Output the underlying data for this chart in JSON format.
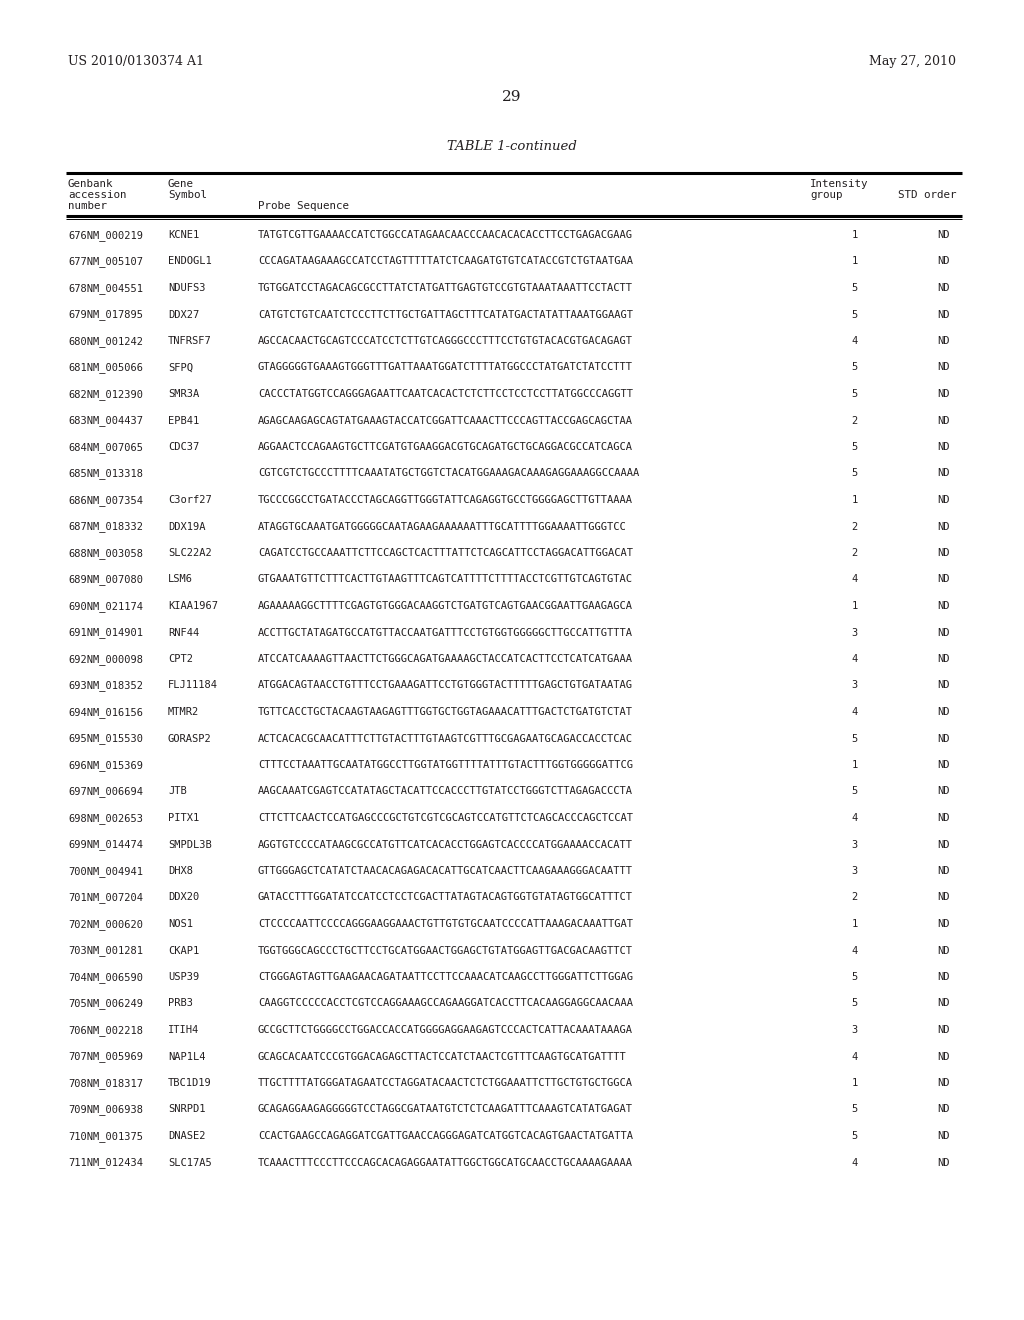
{
  "header_left": "US 2010/0130374 A1",
  "header_right": "May 27, 2010",
  "page_number": "29",
  "table_title": "TABLE 1-continued",
  "rows": [
    [
      "676NM_000219",
      "KCNE1",
      "TATGTCGTTGAAAACCATCTGGCCATAGAACAACCCAACACACACCTTCCTGAGACGAAG",
      "1",
      "ND"
    ],
    [
      "677NM_005107",
      "ENDOGL1",
      "CCCAGATAAGAAAGCCATCCTAGTTTTTATCTCAAGATGTGTCATACCGTCTGTAATGAA",
      "1",
      "ND"
    ],
    [
      "678NM_004551",
      "NDUFS3",
      "TGTGGATCCTAGACAGCGCCTTATCTATGATTGAGTGTCCGTGTAAATAAATTCCTACTT",
      "5",
      "ND"
    ],
    [
      "679NM_017895",
      "DDX27",
      "CATGTCTGTCAATCTCCCTTCTTGCTGATTAGCTTTCATATGACTATATTAAATGGAAGT",
      "5",
      "ND"
    ],
    [
      "680NM_001242",
      "TNFRSF7",
      "AGCCACAACTGCAGTCCCATCCTCTTGTCAGGGCCCTTTCCTGTGTACACGTGACAGAGT",
      "4",
      "ND"
    ],
    [
      "681NM_005066",
      "SFPQ",
      "GTAGGGGGTGAAAGTGGGTTTGATTAAATGGATCTTTTATGGCCCTATGATCTATCCTTT",
      "5",
      "ND"
    ],
    [
      "682NM_012390",
      "SMR3A",
      "CACCCTATGGTCCAGGGAGAATTCAATCACACTCTCTTCCTCCTCCTTATGGCCCAGGTT",
      "5",
      "ND"
    ],
    [
      "683NM_004437",
      "EPB41",
      "AGAGCAAGAGCAGTATGAAAGTACCATCGGATTCAAACTTCCCAGTTACCGAGCAGCTAA",
      "2",
      "ND"
    ],
    [
      "684NM_007065",
      "CDC37",
      "AGGAACTCCAGAAGTGCTTCGATGTGAAGGACGTGCAGATGCTGCAGGACGCCATCAGCA",
      "5",
      "ND"
    ],
    [
      "685NM_013318",
      "",
      "CGTCGTCTGCCCTTTTCAAATATGCTGGTCTACATGGAAAGACAAAGAGGAAAGGCCAAAA",
      "5",
      "ND"
    ],
    [
      "686NM_007354",
      "C3orf27",
      "TGCCCGGCCTGATACCCTAGCAGGTTGGGTATTCAGAGGTGCCTGGGGAGCTTGTTAAAA",
      "1",
      "ND"
    ],
    [
      "687NM_018332",
      "DDX19A",
      "ATAGGTGCAAATGATGGGGGCAATAGAAGAAAAAATTTGCATTTTGGAAAATTGGGTCC",
      "2",
      "ND"
    ],
    [
      "688NM_003058",
      "SLC22A2",
      "CAGATCCTGCCAAATTCTTCCAGCTCACTTTATTCTCAGCATTCCTAGGACATTGGACAT",
      "2",
      "ND"
    ],
    [
      "689NM_007080",
      "LSM6",
      "GTGAAATGTTCTTTCACTTGTAAGTTTCAGTCATTTTCTTTTACCTCGTTGTCAGTGTAC",
      "4",
      "ND"
    ],
    [
      "690NM_021174",
      "KIAA1967",
      "AGAAAAAGGCTTTTCGAGTGTGGGACAAGGTCTGATGTCAGTGAACGGAATTGAAGAGCA",
      "1",
      "ND"
    ],
    [
      "691NM_014901",
      "RNF44",
      "ACCTTGCTATAGATGCCATGTTACCAATGATTTCCTGTGGTGGGGGCTTGCCATTGTTTA",
      "3",
      "ND"
    ],
    [
      "692NM_000098",
      "CPT2",
      "ATCCATCAAAAGTTAACTTCTGGGCAGATGAAAAGCTACCATCACTTCCTCATCATGAAA",
      "4",
      "ND"
    ],
    [
      "693NM_018352",
      "FLJ11184",
      "ATGGACAGTAACCTGTTTCCTGAAAGATTCCTGTGGGTACTTTTTGAGCTGTGATAATAG",
      "3",
      "ND"
    ],
    [
      "694NM_016156",
      "MTMR2",
      "TGTTCACCTGCTACAAGTAAGAGTTTGGTGCTGGTAGAAACATTTGACTCTGATGTCTAT",
      "4",
      "ND"
    ],
    [
      "695NM_015530",
      "GORASP2",
      "ACTCACACGCAACATTTCTTGTACTTTGTAAGTCGTTTGCGAGAATGCAGACCACCTCAC",
      "5",
      "ND"
    ],
    [
      "696NM_015369",
      "",
      "CTTTCCTAAATTGCAATATGGCCTTGGTATGGTTTTATTTGTACTTTGGTGGGGGATTCG",
      "1",
      "ND"
    ],
    [
      "697NM_006694",
      "JTB",
      "AAGCAAATCGAGTCCATATAGCTACATTCCACCCTTGTATCCTGGGTCTTAGAGACCCTA",
      "5",
      "ND"
    ],
    [
      "698NM_002653",
      "PITX1",
      "CTTCTTCAACTCCATGAGCCCGCTGTCGTCGCAGTCCATGTTCTCAGCACCCAGCTCCAT",
      "4",
      "ND"
    ],
    [
      "699NM_014474",
      "SMPDL3B",
      "AGGTGTCCCCATAAGCGCCATGTTCATCACACCTGGAGTCACCCCATGGAAAACCACATT",
      "3",
      "ND"
    ],
    [
      "700NM_004941",
      "DHX8",
      "GTTGGGAGCTCATATCTAACACAGAGACACATTGCATCAACTTCAAGAAAGGGACAATTT",
      "3",
      "ND"
    ],
    [
      "701NM_007204",
      "DDX20",
      "GATACCTTTGGATATCCATCCTCCTCGACTTATAGTACAGTGGTGTATAGTGGCATTTCT",
      "2",
      "ND"
    ],
    [
      "702NM_000620",
      "NOS1",
      "CTCCCCAATTCCCCAGGGAAGGAAACTGTTGTGTGCAATCCCCATTAAAGACAAATTGAT",
      "1",
      "ND"
    ],
    [
      "703NM_001281",
      "CKAP1",
      "TGGTGGGCAGCCCTGCTTCCTGCATGGAACTGGAGCTGTATGGAGTTGACGACAAGTTCT",
      "4",
      "ND"
    ],
    [
      "704NM_006590",
      "USP39",
      "CTGGGAGTAGTTGAAGAACAGATAATTCCTTCCAAACATCAAGCCTTGGGATTCTTGGAG",
      "5",
      "ND"
    ],
    [
      "705NM_006249",
      "PRB3",
      "CAAGGTCCCCCACCTCGTCCAGGAAAGCCAGAAGGATCACCTTCACAAGGAGGCAACAAA",
      "5",
      "ND"
    ],
    [
      "706NM_002218",
      "ITIH4",
      "GCCGCTTCTGGGGCCTGGACCACCATGGGGAGGAAGAGTCCCACTCATTACAAATAAAGA",
      "3",
      "ND"
    ],
    [
      "707NM_005969",
      "NAP1L4",
      "GCAGCACAATCCCGTGGACAGAGCTTACTCCATCTAACTCGTTTCAAGTGCATGATTTT",
      "4",
      "ND"
    ],
    [
      "708NM_018317",
      "TBC1D19",
      "TTGCTTTTATGGGATAGAATCCTAGGATACAACTCTCTGGAAATTCTTGCTGTGCTGGCA",
      "1",
      "ND"
    ],
    [
      "709NM_006938",
      "SNRPD1",
      "GCAGAGGAAGAGGGGGTCCTAGGCGATAATGTCTCTCAAGATTTCAAAGTCATATGAGAT",
      "5",
      "ND"
    ],
    [
      "710NM_001375",
      "DNASE2",
      "CCACTGAAGCCAGAGGATCGATTGAACCAGGGAGATCATGGTCACAGTGAACTATGATTA",
      "5",
      "ND"
    ],
    [
      "711NM_012434",
      "SLC17A5",
      "TCAAACTTTCCCTTCCCAGCACAGAGGAATATTGGCTGGCATGCAACCTGCAAAAGAAAA",
      "4",
      "ND"
    ]
  ],
  "bg_color": "#ffffff",
  "text_color": "#231f20"
}
